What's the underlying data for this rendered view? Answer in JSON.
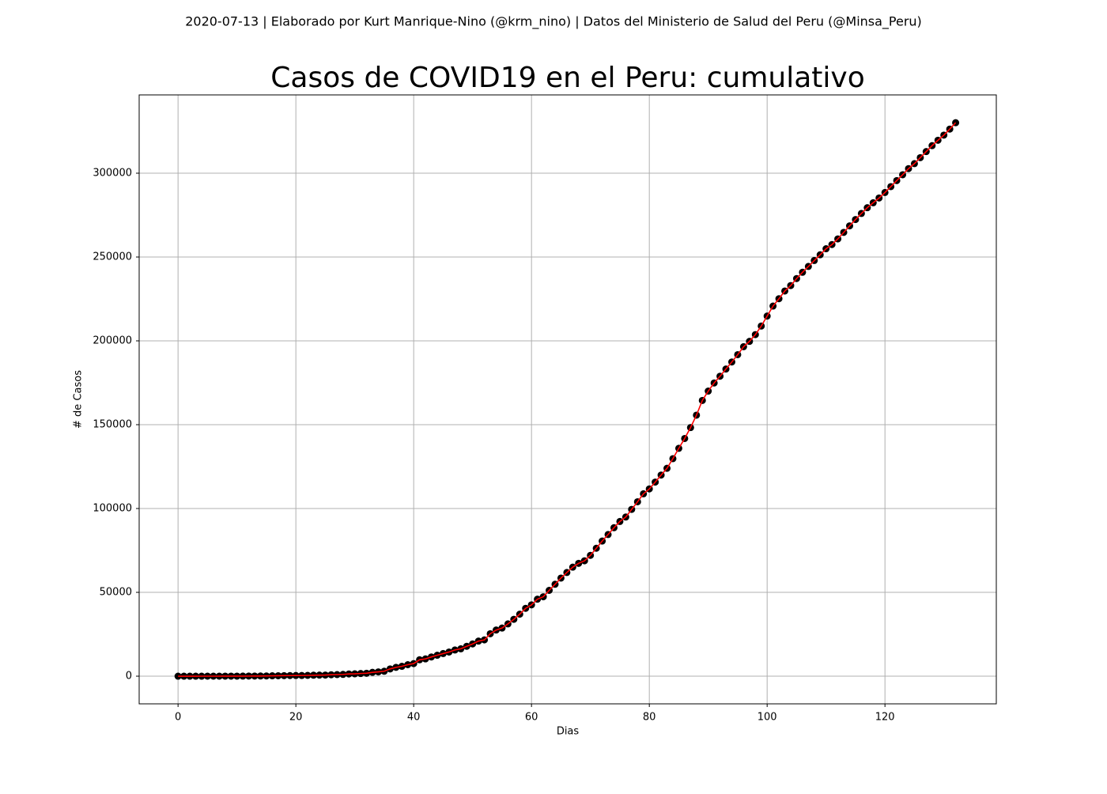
{
  "chart_data": {
    "type": "line_markers",
    "subtitle": "2020-07-13 | Elaborado por Kurt Manrique-Nino (@krm_nino) | Datos del Ministerio de Salud del Peru (@Minsa_Peru)",
    "title": "Casos de COVID19 en el Peru: cumulativo",
    "xlabel": "Dias",
    "ylabel": "# de Casos",
    "x": [
      0,
      1,
      2,
      3,
      4,
      5,
      6,
      7,
      8,
      9,
      10,
      11,
      12,
      13,
      14,
      15,
      16,
      17,
      18,
      19,
      20,
      21,
      22,
      23,
      24,
      25,
      26,
      27,
      28,
      29,
      30,
      31,
      32,
      33,
      34,
      35,
      36,
      37,
      38,
      39,
      40,
      41,
      42,
      43,
      44,
      45,
      46,
      47,
      48,
      49,
      50,
      51,
      52,
      53,
      54,
      55,
      56,
      57,
      58,
      59,
      60,
      61,
      62,
      63,
      64,
      65,
      66,
      67,
      68,
      69,
      70,
      71,
      72,
      73,
      74,
      75,
      76,
      77,
      78,
      79,
      80,
      81,
      82,
      83,
      84,
      85,
      86,
      87,
      88,
      89,
      90,
      91,
      92,
      93,
      94,
      95,
      96,
      97,
      98,
      99,
      100,
      101,
      102,
      103,
      104,
      105,
      106,
      107,
      108,
      109,
      110,
      111,
      112,
      113,
      114,
      115,
      116,
      117,
      118,
      119,
      120,
      121,
      122,
      123,
      124,
      125,
      126,
      127,
      128,
      129,
      130,
      131,
      132
    ],
    "series": [
      {
        "line_color": "#ff0000",
        "marker_color": "#000000",
        "values": [
          1,
          1,
          1,
          1,
          6,
          7,
          9,
          11,
          17,
          22,
          38,
          43,
          71,
          86,
          117,
          145,
          234,
          263,
          318,
          363,
          395,
          416,
          480,
          580,
          635,
          671,
          852,
          950,
          1065,
          1323,
          1414,
          1595,
          1746,
          2281,
          2561,
          2954,
          4342,
          5256,
          5897,
          6848,
          7519,
          9784,
          10303,
          11475,
          12491,
          13489,
          14420,
          15628,
          16325,
          17837,
          19250,
          20914,
          21648,
          25331,
          27517,
          28699,
          31190,
          33931,
          36976,
          40459,
          42534,
          45928,
          47372,
          51189,
          54817,
          58526,
          61847,
          65015,
          67307,
          68822,
          72059,
          76306,
          80604,
          84495,
          88541,
          92273,
          94933,
          99483,
          104020,
          108769,
          111698,
          115754,
          119959,
          123979,
          129751,
          135905,
          141779,
          148285,
          155671,
          164476,
          170039,
          174884,
          178914,
          183198,
          187400,
          191758,
          196515,
          199696,
          203736,
          208823,
          214788,
          220749,
          225132,
          229736,
          232992,
          237156,
          240908,
          244388,
          247925,
          251338,
          254936,
          257447,
          260810,
          264689,
          268602,
          272364,
          275989,
          279419,
          282365,
          285213,
          288477,
          292004,
          295599,
          299080,
          302718,
          305703,
          309278,
          312911,
          316448,
          319646,
          322710,
          326326,
          330123
        ]
      }
    ],
    "xlim": [
      -6.6,
      138.9
    ],
    "ylim": [
      -16500,
      346700
    ],
    "xticks": [
      0,
      20,
      40,
      60,
      80,
      100,
      120
    ],
    "yticks": [
      0,
      50000,
      100000,
      150000,
      200000,
      250000,
      300000
    ],
    "grid": true
  }
}
